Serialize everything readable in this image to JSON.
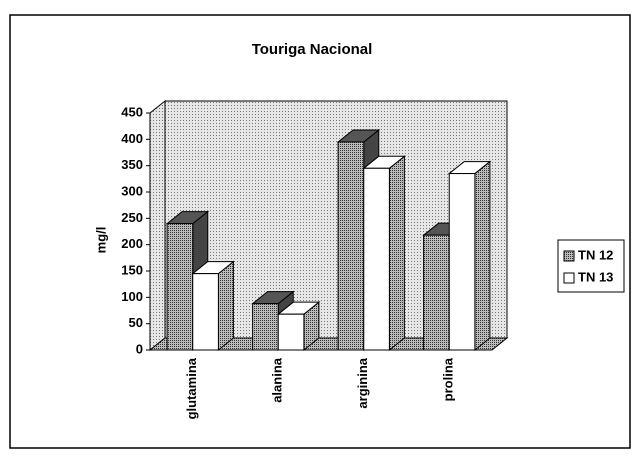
{
  "chart_data": {
    "type": "bar",
    "title": "Touriga Nacional",
    "ylabel": "mg/l",
    "categories": [
      "glutamina",
      "alanina",
      "arginina",
      "prolina"
    ],
    "series": [
      {
        "name": "TN 12",
        "color": "#9a9a9a",
        "values": [
          240,
          88,
          395,
          218
        ]
      },
      {
        "name": "TN 13",
        "color": "#ffffff",
        "values": [
          145,
          68,
          345,
          335
        ]
      }
    ],
    "ylim": [
      0,
      450
    ],
    "yticks": [
      0,
      50,
      100,
      150,
      200,
      250,
      300,
      350,
      400,
      450
    ],
    "legend": "right"
  }
}
